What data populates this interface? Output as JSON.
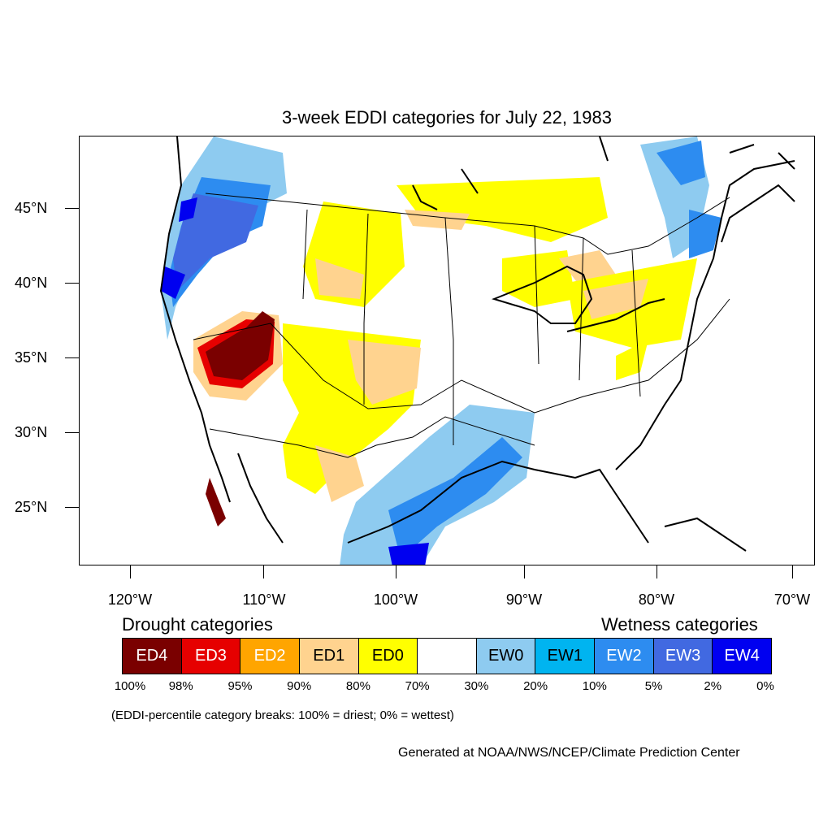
{
  "title": "3-week EDDI categories for July 22, 1983",
  "lat_labels": [
    "45°N",
    "40°N",
    "35°N",
    "30°N",
    "25°N"
  ],
  "lon_labels": [
    "120°W",
    "110°W",
    "100°W",
    "90°W",
    "80°W",
    "70°W"
  ],
  "legend": {
    "drought_heading": "Drought categories",
    "wetness_heading": "Wetness categories",
    "categories": [
      {
        "label": "ED4",
        "color": "#7a0000",
        "text_color": "#ffffff"
      },
      {
        "label": "ED3",
        "color": "#e60000",
        "text_color": "#ffffff"
      },
      {
        "label": "ED2",
        "color": "#ffa500",
        "text_color": "#ffffff"
      },
      {
        "label": "ED1",
        "color": "#ffd38f",
        "text_color": "#000000"
      },
      {
        "label": "ED0",
        "color": "#ffff00",
        "text_color": "#000000"
      },
      {
        "label": "",
        "color": "#ffffff",
        "text_color": "#000000"
      },
      {
        "label": "EW0",
        "color": "#8ecbf0",
        "text_color": "#000000"
      },
      {
        "label": "EW1",
        "color": "#00b4f0",
        "text_color": "#000000"
      },
      {
        "label": "EW2",
        "color": "#2d8cf0",
        "text_color": "#ffffff"
      },
      {
        "label": "EW3",
        "color": "#4169e1",
        "text_color": "#ffffff"
      },
      {
        "label": "EW4",
        "color": "#0000f0",
        "text_color": "#ffffff"
      }
    ],
    "percentiles": [
      "100%",
      "98%",
      "95%",
      "90%",
      "80%",
      "70%",
      "30%",
      "20%",
      "10%",
      "5%",
      "2%",
      "0%"
    ],
    "note": "(EDDI-percentile category breaks: 100% = driest; 0% = wettest)"
  },
  "credit": "Generated at NOAA/NWS/NCEP/Climate Prediction Center"
}
